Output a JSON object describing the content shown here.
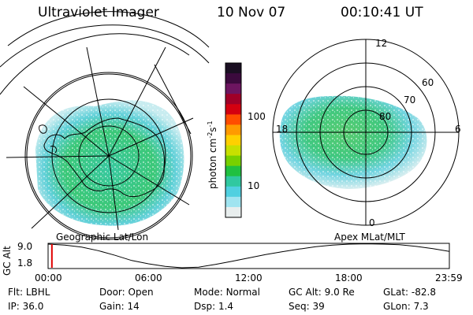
{
  "header": {
    "title": "Ultraviolet Imager",
    "date": "10 Nov 07",
    "time": "00:10:41 UT"
  },
  "colorbar": {
    "label": "photon cm-2s-1",
    "ticks": [
      "100",
      "10"
    ],
    "colors": [
      "#1a0f22",
      "#3b0a3d",
      "#6d1560",
      "#a00028",
      "#d40010",
      "#ff4d00",
      "#ff9a00",
      "#ffd000",
      "#c8e000",
      "#78d000",
      "#20c040",
      "#30c8a0",
      "#50d0e0",
      "#a0e4f0",
      "#e8eeee"
    ]
  },
  "left_map": {
    "caption": "Geographic Lat/Lon"
  },
  "right_map": {
    "caption": "Apex MLat/MLT",
    "lat_labels": [
      "80",
      "70",
      "60"
    ],
    "mlt_labels": {
      "top": "12",
      "left": "18",
      "right": "6",
      "bottom": "0"
    }
  },
  "alt_plot": {
    "ylabel": "GC Alt",
    "yticks": [
      "9.0",
      "1.8"
    ],
    "xticks": [
      "00:00",
      "06:00",
      "12:00",
      "18:00",
      "23:59"
    ],
    "curve": [
      [
        0,
        9.0
      ],
      [
        1,
        8.7
      ],
      [
        2,
        8.1
      ],
      [
        3,
        7.0
      ],
      [
        4,
        5.6
      ],
      [
        5,
        4.0
      ],
      [
        6,
        3.0
      ],
      [
        7,
        2.2
      ],
      [
        8,
        1.8
      ],
      [
        9,
        2.0
      ],
      [
        10,
        2.8
      ],
      [
        11,
        3.8
      ],
      [
        12,
        4.8
      ],
      [
        13,
        5.8
      ],
      [
        14,
        6.7
      ],
      [
        15,
        7.5
      ],
      [
        16,
        8.2
      ],
      [
        17,
        8.7
      ],
      [
        18,
        9.0
      ],
      [
        19,
        9.1
      ],
      [
        20,
        9.0
      ],
      [
        21,
        8.8
      ],
      [
        22,
        8.3
      ],
      [
        23,
        7.6
      ],
      [
        23.98,
        6.8
      ]
    ],
    "marker_time": 0.18,
    "marker_color": "#e00000",
    "xmax": 23.98
  },
  "info": [
    {
      "label": "Flt:",
      "value": "LBHL"
    },
    {
      "label": "Door:",
      "value": "Open"
    },
    {
      "label": "Mode:",
      "value": "Normal"
    },
    {
      "label": "GC Alt:",
      "value": "9.0 Re"
    },
    {
      "label": "GLat:",
      "value": "-82.8"
    },
    {
      "label": "IP:",
      "value": "36.0"
    },
    {
      "label": "Gain:",
      "value": "14"
    },
    {
      "label": "Dsp:",
      "value": "1.4"
    },
    {
      "label": "Seq:",
      "value": "39"
    },
    {
      "label": "GLon:",
      "value": "7.3"
    }
  ]
}
